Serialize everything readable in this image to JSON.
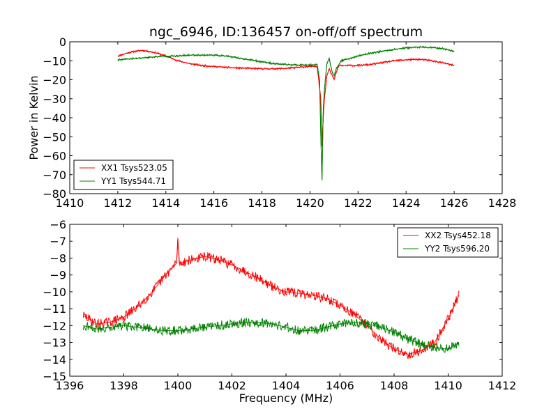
{
  "chart_data": [
    {
      "type": "line",
      "title": "ngc_6946, ID:136457 on-off/off spectrum",
      "xlabel": "",
      "ylabel": "Power in Kelvin",
      "xlim": [
        1410,
        1428
      ],
      "ylim": [
        -80,
        0
      ],
      "xticks": [
        "1410",
        "1412",
        "1414",
        "1416",
        "1418",
        "1420",
        "1422",
        "1424",
        "1426",
        "1428"
      ],
      "yticks": [
        "0",
        "−10",
        "−20",
        "−30",
        "−40",
        "−50",
        "−60",
        "−70",
        "−80"
      ],
      "legend_position": "lower-left",
      "series": [
        {
          "name": "XX1 Tsys523.05",
          "color": "#ff0000",
          "x": [
            1412.0,
            1412.5,
            1413.0,
            1413.5,
            1414.0,
            1414.5,
            1415.0,
            1415.5,
            1416.0,
            1416.5,
            1417.0,
            1417.5,
            1418.0,
            1418.5,
            1419.0,
            1419.5,
            1420.0,
            1420.3,
            1420.45,
            1420.5,
            1420.55,
            1420.6,
            1420.7,
            1420.8,
            1420.9,
            1421.0,
            1421.1,
            1421.2,
            1421.4,
            1421.6,
            1422.0,
            1422.5,
            1423.0,
            1423.5,
            1424.0,
            1424.5,
            1425.0,
            1425.5,
            1426.0
          ],
          "y": [
            -7.5,
            -5.5,
            -4.5,
            -5.5,
            -7.5,
            -10.0,
            -11.5,
            -12.5,
            -13.0,
            -13.5,
            -13.8,
            -14.0,
            -14.2,
            -14.2,
            -14.0,
            -13.5,
            -13.0,
            -13.0,
            -30.0,
            -55.0,
            -40.0,
            -30.0,
            -18.0,
            -14.0,
            -17.0,
            -20.0,
            -16.0,
            -12.5,
            -12.5,
            -12.5,
            -12.5,
            -12.0,
            -11.0,
            -10.0,
            -9.5,
            -9.2,
            -9.8,
            -11.0,
            -12.5
          ]
        },
        {
          "name": "YY1 Tsys544.71",
          "color": "#008000",
          "x": [
            1412.0,
            1412.5,
            1413.0,
            1413.5,
            1414.0,
            1414.5,
            1415.0,
            1415.5,
            1416.0,
            1416.5,
            1417.0,
            1417.5,
            1418.0,
            1418.5,
            1419.0,
            1419.5,
            1420.0,
            1420.3,
            1420.4,
            1420.45,
            1420.5,
            1420.55,
            1420.6,
            1420.7,
            1420.8,
            1420.9,
            1421.0,
            1421.1,
            1421.3,
            1421.6,
            1422.0,
            1422.5,
            1423.0,
            1423.5,
            1424.0,
            1424.5,
            1425.0,
            1425.5,
            1426.0
          ],
          "y": [
            -9.5,
            -9.0,
            -8.5,
            -8.0,
            -7.5,
            -7.5,
            -7.0,
            -7.0,
            -7.0,
            -7.5,
            -8.5,
            -9.5,
            -10.5,
            -11.5,
            -12.0,
            -12.2,
            -12.2,
            -12.0,
            -20.0,
            -50.0,
            -73.0,
            -36.0,
            -25.0,
            -12.0,
            -8.5,
            -15.0,
            -18.0,
            -14.0,
            -10.0,
            -9.0,
            -7.5,
            -6.0,
            -5.0,
            -4.0,
            -3.2,
            -2.8,
            -3.0,
            -3.5,
            -5.0
          ]
        }
      ]
    },
    {
      "type": "line",
      "title": "",
      "xlabel": "Frequency (MHz)",
      "ylabel": "",
      "xlim": [
        1396,
        1412
      ],
      "ylim": [
        -15,
        -6
      ],
      "xticks": [
        "1396",
        "1398",
        "1400",
        "1402",
        "1404",
        "1406",
        "1408",
        "1410",
        "1412"
      ],
      "yticks": [
        "−6",
        "−7",
        "−8",
        "−9",
        "−10",
        "−11",
        "−12",
        "−13",
        "−14",
        "−15"
      ],
      "legend_position": "upper-right",
      "series": [
        {
          "name": "XX2 Tsys452.18",
          "color": "#ff0000",
          "x": [
            1396.5,
            1397.0,
            1397.5,
            1398.0,
            1398.5,
            1399.0,
            1399.5,
            1399.95,
            1400.0,
            1400.05,
            1400.5,
            1401.0,
            1401.5,
            1402.0,
            1402.5,
            1403.0,
            1403.5,
            1404.0,
            1404.5,
            1405.0,
            1405.5,
            1406.0,
            1406.5,
            1407.0,
            1407.5,
            1408.0,
            1408.5,
            1409.0,
            1409.5,
            1410.0,
            1410.4
          ],
          "y": [
            -11.4,
            -11.9,
            -11.8,
            -11.5,
            -10.9,
            -10.1,
            -9.1,
            -8.3,
            -6.8,
            -8.3,
            -8.1,
            -7.9,
            -8.1,
            -8.4,
            -8.8,
            -9.2,
            -9.7,
            -10.0,
            -10.1,
            -10.2,
            -10.4,
            -10.8,
            -11.3,
            -12.0,
            -12.8,
            -13.4,
            -13.7,
            -13.5,
            -13.0,
            -11.6,
            -10.2
          ]
        },
        {
          "name": "YY2 Tsys596.20",
          "color": "#008000",
          "x": [
            1396.5,
            1397.0,
            1397.5,
            1398.0,
            1398.5,
            1399.0,
            1399.5,
            1400.0,
            1400.5,
            1401.0,
            1401.5,
            1402.0,
            1402.5,
            1403.0,
            1403.5,
            1404.0,
            1404.5,
            1405.0,
            1405.5,
            1406.0,
            1406.5,
            1407.0,
            1407.5,
            1408.0,
            1408.5,
            1409.0,
            1409.5,
            1410.0,
            1410.4
          ],
          "y": [
            -12.0,
            -12.2,
            -12.1,
            -12.0,
            -12.1,
            -12.2,
            -12.3,
            -12.3,
            -12.2,
            -12.1,
            -12.0,
            -11.9,
            -11.8,
            -11.8,
            -11.9,
            -12.1,
            -12.3,
            -12.3,
            -12.1,
            -11.9,
            -11.8,
            -11.9,
            -12.1,
            -12.4,
            -12.8,
            -13.1,
            -13.3,
            -13.4,
            -13.0
          ]
        }
      ]
    }
  ]
}
